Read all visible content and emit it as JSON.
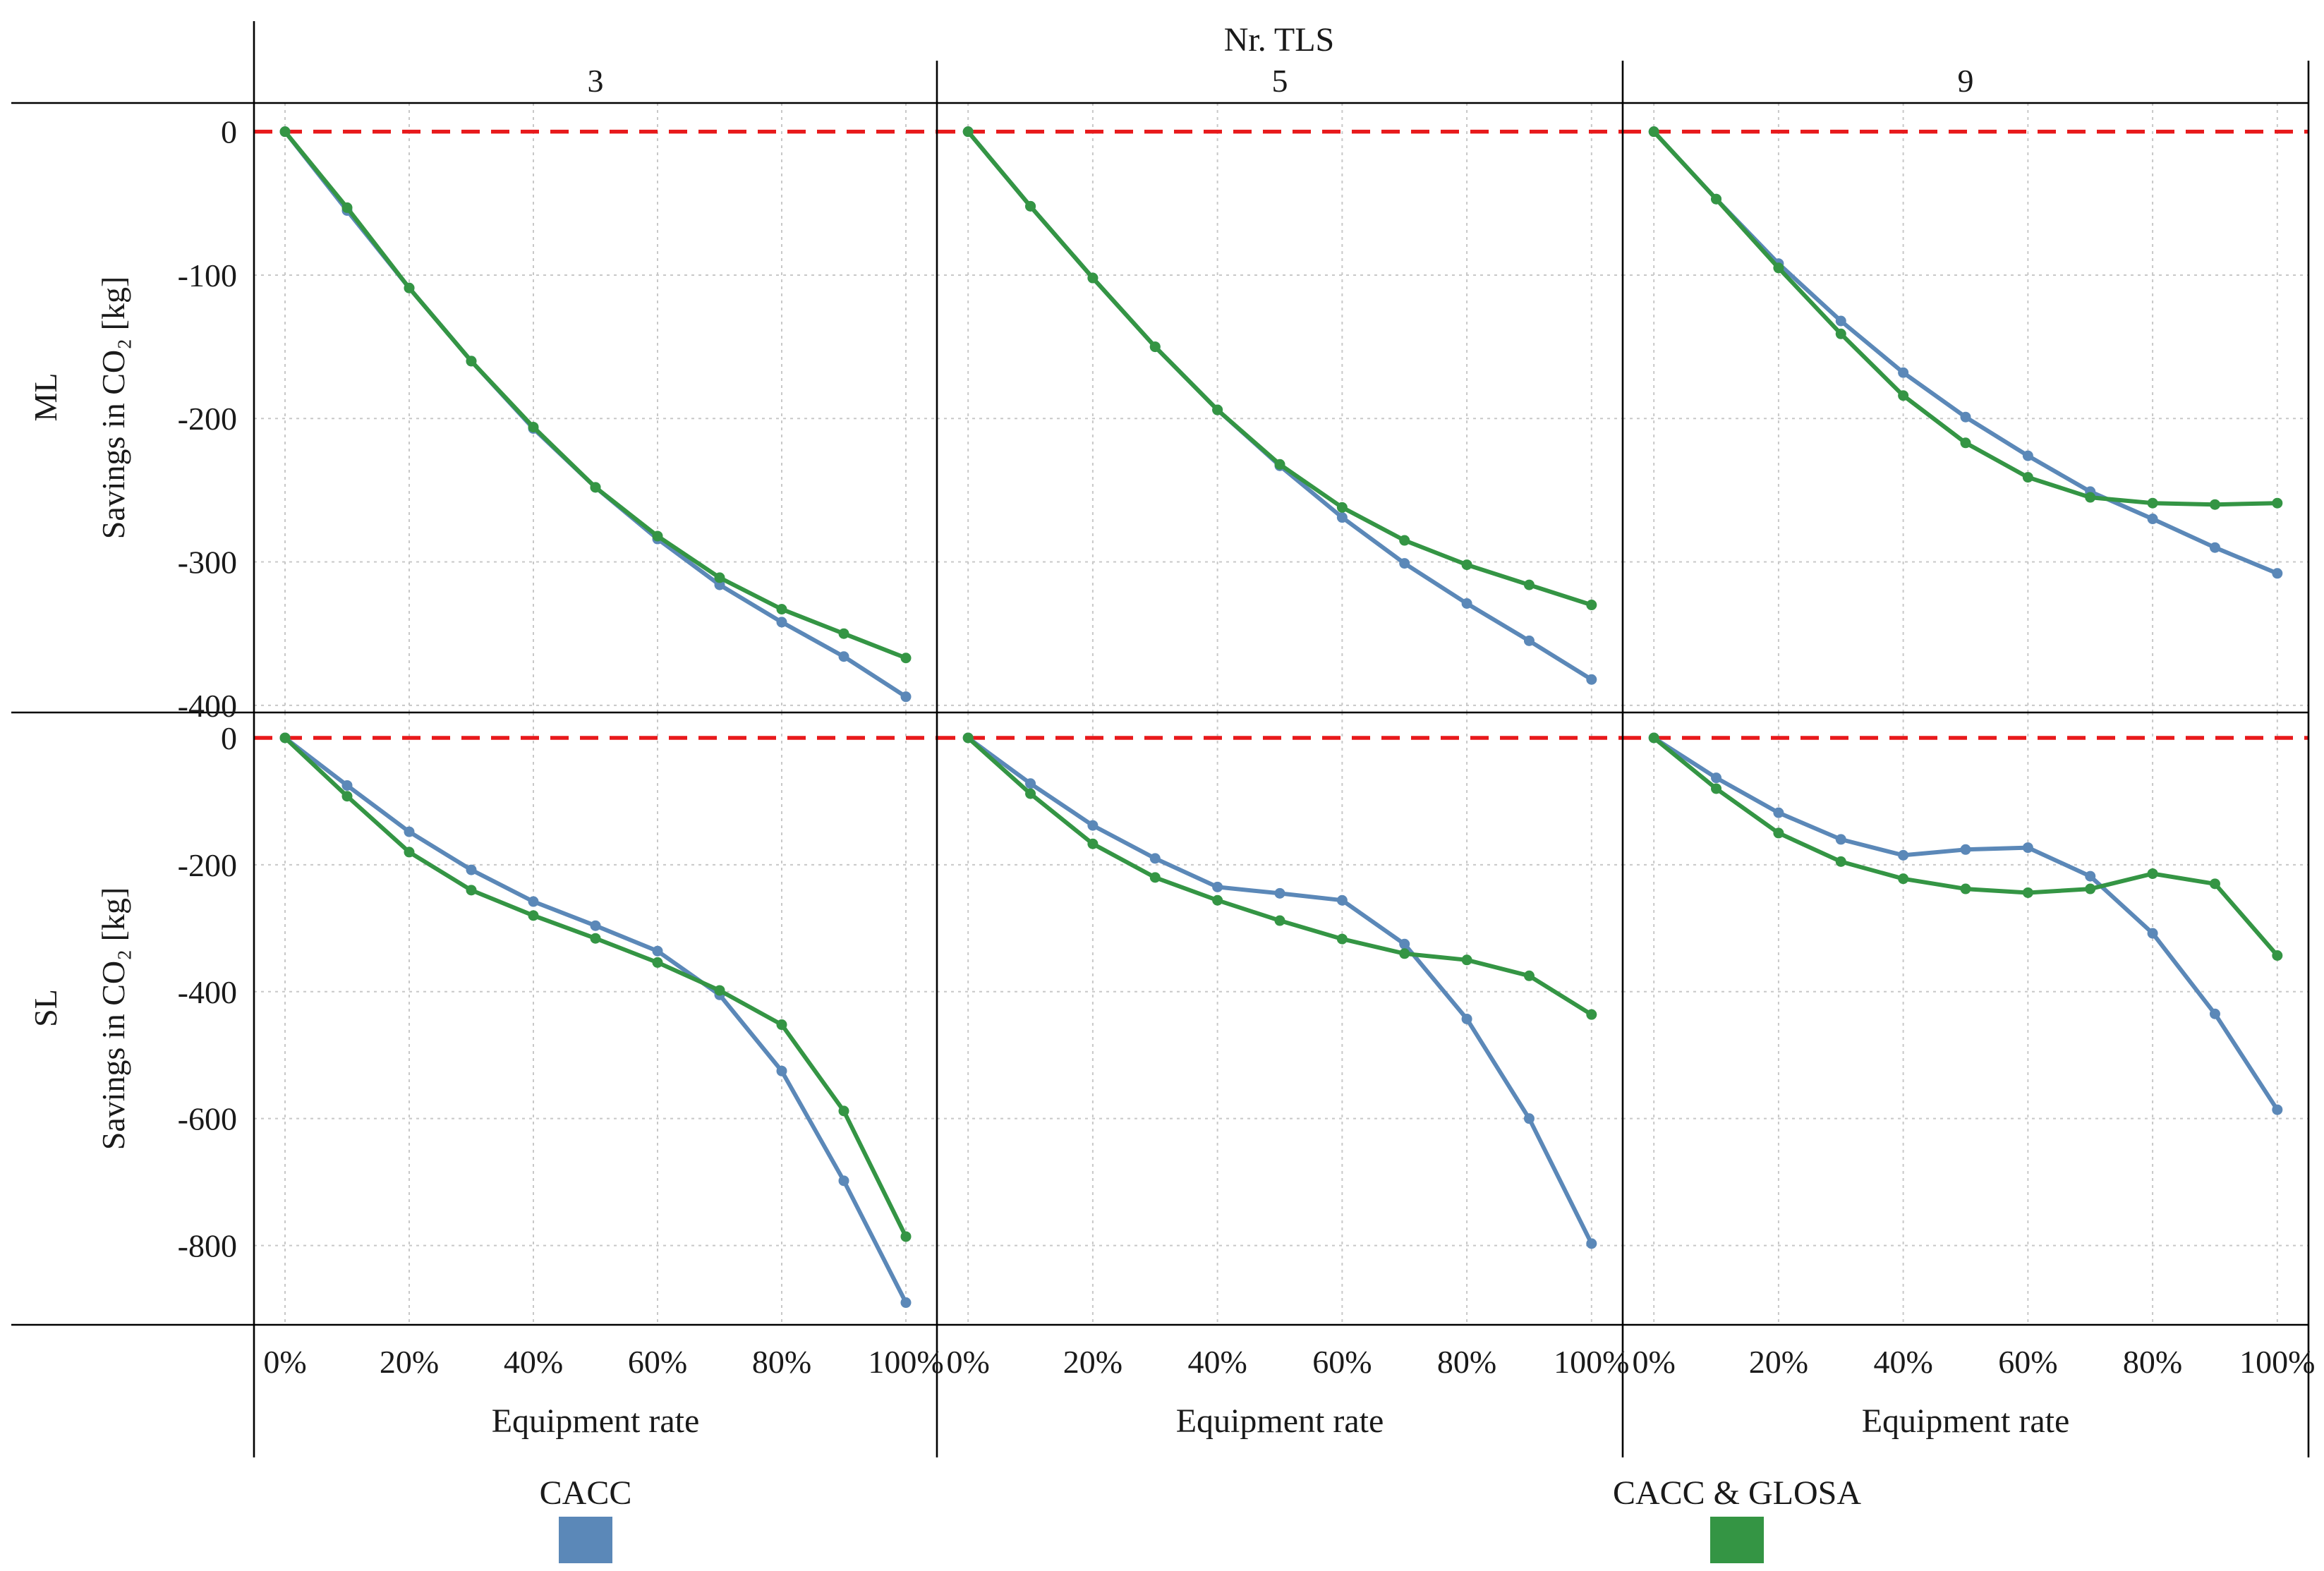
{
  "chart_data": {
    "type": "line",
    "facet_column_title": "Nr. TLS",
    "columns": [
      "3",
      "5",
      "9"
    ],
    "rows": [
      "ML",
      "SL"
    ],
    "ylabel": "Savings in CO₂ [kg]",
    "xlabel": "Equipment rate",
    "x": [
      0,
      10,
      20,
      30,
      40,
      50,
      60,
      70,
      80,
      90,
      100
    ],
    "x_tick_labels": [
      "0%",
      "20%",
      "40%",
      "60%",
      "80%",
      "100%"
    ],
    "x_tick_values": [
      0,
      20,
      40,
      60,
      80,
      100
    ],
    "xlim": [
      -5,
      105
    ],
    "row_axes": [
      {
        "row": "ML",
        "ylim": [
          -405,
          20
        ],
        "ticks": [
          0,
          -100,
          -200,
          -300,
          -400
        ],
        "tick_labels": [
          "0",
          "-100",
          "-200",
          "-300",
          "-400"
        ]
      },
      {
        "row": "SL",
        "ylim": [
          -925,
          40
        ],
        "ticks": [
          0,
          -200,
          -400,
          -600,
          -800
        ],
        "tick_labels": [
          "0",
          "-200",
          "-400",
          "-600",
          "-800"
        ]
      }
    ],
    "reference_line": {
      "y": 0,
      "color": "#e8191b",
      "style": "dashed"
    },
    "legend": [
      {
        "name": "CACC",
        "color": "#5b88b8"
      },
      {
        "name": "CACC & GLOSA",
        "color": "#349544"
      }
    ],
    "panels": [
      {
        "row": "ML",
        "column": "3",
        "series": [
          {
            "name": "CACC",
            "values": [
              0,
              -55,
              -109,
              -160,
              -207,
              -248,
              -284,
              -316,
              -342,
              -366,
              -394
            ]
          },
          {
            "name": "CACC & GLOSA",
            "values": [
              0,
              -53,
              -109,
              -160,
              -206,
              -248,
              -282,
              -311,
              -333,
              -350,
              -367
            ]
          }
        ]
      },
      {
        "row": "ML",
        "column": "5",
        "series": [
          {
            "name": "CACC",
            "values": [
              0,
              -52,
              -102,
              -150,
              -194,
              -233,
              -269,
              -301,
              -329,
              -355,
              -382
            ]
          },
          {
            "name": "CACC & GLOSA",
            "values": [
              0,
              -52,
              -102,
              -150,
              -194,
              -232,
              -262,
              -285,
              -302,
              -316,
              -330
            ]
          }
        ]
      },
      {
        "row": "ML",
        "column": "9",
        "series": [
          {
            "name": "CACC",
            "values": [
              0,
              -47,
              -92,
              -132,
              -168,
              -199,
              -226,
              -251,
              -270,
              -290,
              -308
            ]
          },
          {
            "name": "CACC & GLOSA",
            "values": [
              0,
              -47,
              -95,
              -141,
              -184,
              -217,
              -241,
              -255,
              -259,
              -260,
              -259
            ]
          }
        ]
      },
      {
        "row": "SL",
        "column": "3",
        "series": [
          {
            "name": "CACC",
            "values": [
              0,
              -75,
              -148,
              -208,
              -258,
              -296,
              -336,
              -405,
              -525,
              -698,
              -890
            ]
          },
          {
            "name": "CACC & GLOSA",
            "values": [
              0,
              -92,
              -180,
              -240,
              -280,
              -316,
              -354,
              -398,
              -452,
              -588,
              -786
            ]
          }
        ]
      },
      {
        "row": "SL",
        "column": "5",
        "series": [
          {
            "name": "CACC",
            "values": [
              0,
              -72,
              -138,
              -190,
              -235,
              -245,
              -256,
              -325,
              -443,
              -600,
              -797
            ]
          },
          {
            "name": "CACC & GLOSA",
            "values": [
              0,
              -88,
              -167,
              -220,
              -256,
              -288,
              -317,
              -340,
              -350,
              -375,
              -436
            ]
          }
        ]
      },
      {
        "row": "SL",
        "column": "9",
        "series": [
          {
            "name": "CACC",
            "values": [
              0,
              -63,
              -118,
              -160,
              -185,
              -176,
              -173,
              -218,
              -308,
              -435,
              -586
            ]
          },
          {
            "name": "CACC & GLOSA",
            "values": [
              0,
              -80,
              -150,
              -195,
              -222,
              -238,
              -244,
              -238,
              -214,
              -230,
              -343
            ]
          }
        ]
      }
    ]
  }
}
